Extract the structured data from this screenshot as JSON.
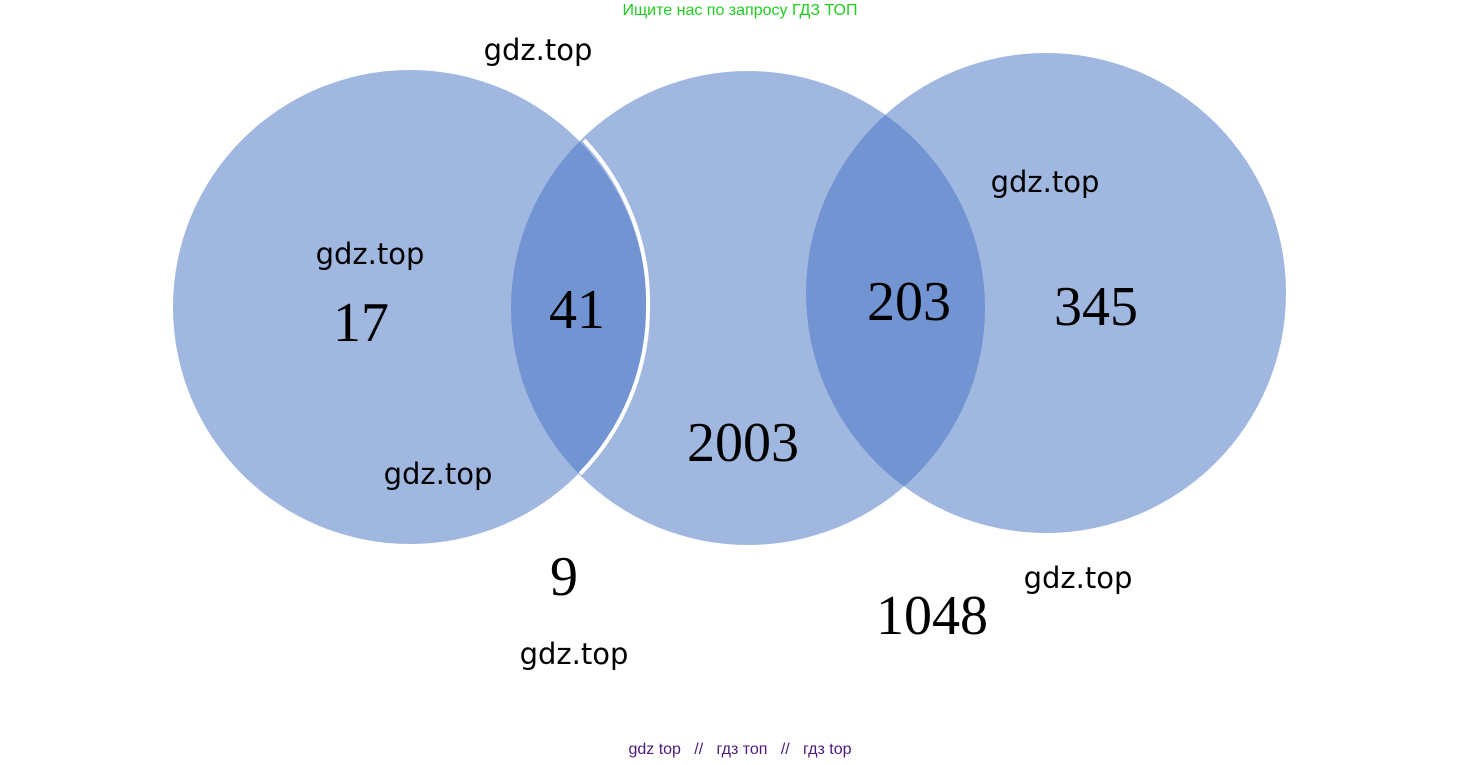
{
  "header": {
    "text": "Ищите нас по запросу ГДЗ ТОП",
    "color": "#22cc22"
  },
  "footer": {
    "links": [
      "gdz top",
      "гдз топ",
      "гдз top"
    ],
    "separator": "//",
    "color": "#4b1a7a"
  },
  "colors": {
    "circle_fill": "#a0b7e0",
    "overlap_fill": "#7294d2",
    "outline": "#ffffff"
  },
  "venn": {
    "regions": {
      "left_only": "17",
      "left_middle": "41",
      "middle_only": "2003",
      "middle_right": "203",
      "right_only": "345",
      "outside_left_middle": "9",
      "outside_right": "1048"
    }
  },
  "watermarks": {
    "top": "gdz.top",
    "left_upper": "gdz.top",
    "left_lower": "gdz.top",
    "right_upper": "gdz.top",
    "right_lower": "gdz.top",
    "bottom": "gdz.top"
  }
}
